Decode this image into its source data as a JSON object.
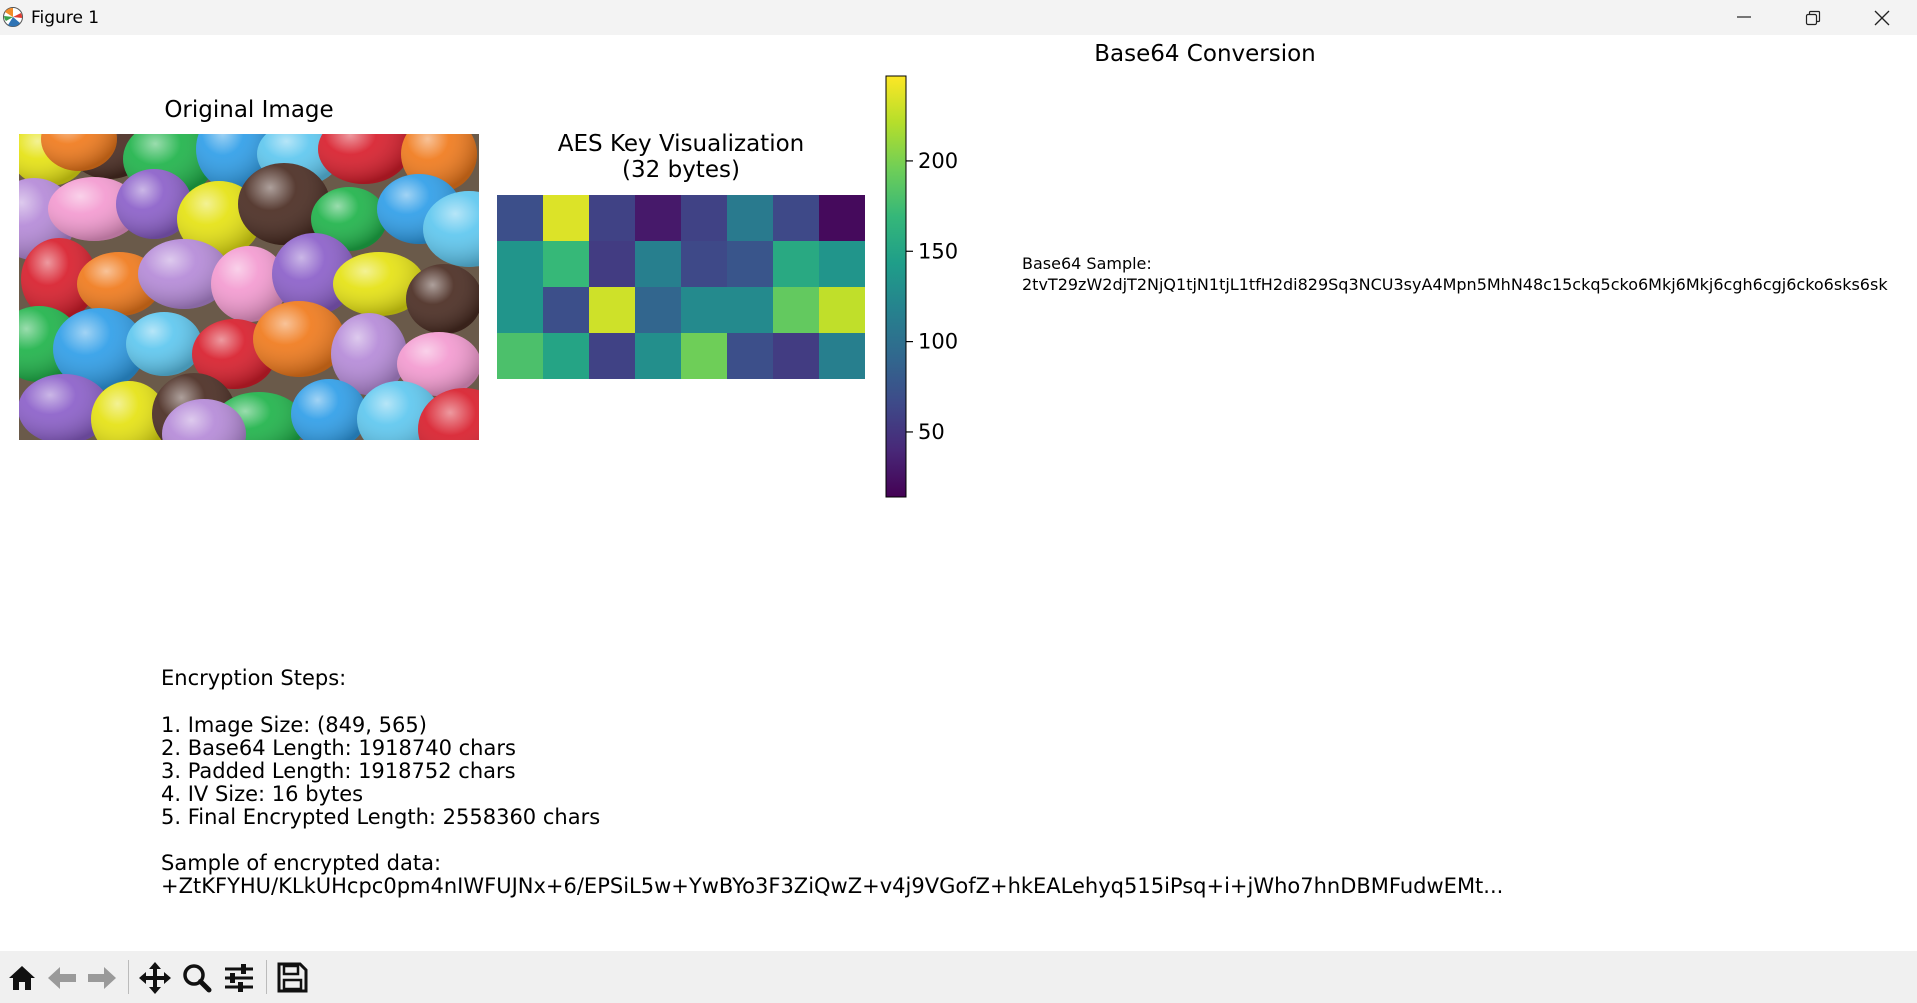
{
  "window": {
    "title": "Figure 1",
    "controls": [
      "minimize",
      "restore",
      "close"
    ]
  },
  "figure": {
    "original_image": {
      "title": "Original Image"
    },
    "aes_key": {
      "title_line1": "AES Key Visualization",
      "title_line2": "(32 bytes)"
    },
    "base64": {
      "title": "Base64 Conversion",
      "sample_label": "Base64 Sample:",
      "sample_value": "2tvT29zW2djT2NjQ1tjN1tjL1tfH2di829Sq3NCU3syA4Mpn5MhN48c15ckq5cko6Mkj6Mkj6cgh6cgj6cko6sks6sk"
    },
    "encryption": {
      "heading": "Encryption Steps:",
      "steps": [
        "1. Image Size: (849, 565)",
        "2. Base64 Length: 1918740 chars",
        "3. Padded Length: 1918752 chars",
        "4. IV Size: 16 bytes",
        "5. Final Encrypted Length: 2558360 chars"
      ],
      "sample_label": "Sample of encrypted data:",
      "sample_value": "+ZtKFYHU/KLkUHcpc0pm4nIWFUJNx+6/EPSiL5w+YwBYo3F3ZiQwZ+v4j9VGofZ+hkEALehyq515iPsq+i+jWho7hnDBMFudwEMt..."
    }
  },
  "chart_data": {
    "type": "heatmap",
    "title": "AES Key Visualization\n(32 bytes)",
    "rows": 4,
    "cols": 8,
    "values": [
      [
        70,
        235,
        60,
        30,
        60,
        110,
        65,
        20
      ],
      [
        135,
        170,
        55,
        115,
        65,
        75,
        155,
        135
      ],
      [
        135,
        70,
        230,
        90,
        125,
        125,
        190,
        225
      ],
      [
        180,
        150,
        60,
        130,
        195,
        70,
        55,
        115
      ]
    ],
    "colormap": "viridis",
    "colorbar": {
      "vmin": 14,
      "vmax": 247,
      "ticks": [
        50,
        100,
        150,
        200
      ]
    }
  },
  "toolbar": {
    "buttons": [
      {
        "name": "home-icon"
      },
      {
        "name": "back-icon"
      },
      {
        "name": "forward-icon"
      },
      {
        "name": "pan-icon"
      },
      {
        "name": "zoom-icon"
      },
      {
        "name": "configure-subplots-icon"
      },
      {
        "name": "save-icon"
      }
    ]
  }
}
